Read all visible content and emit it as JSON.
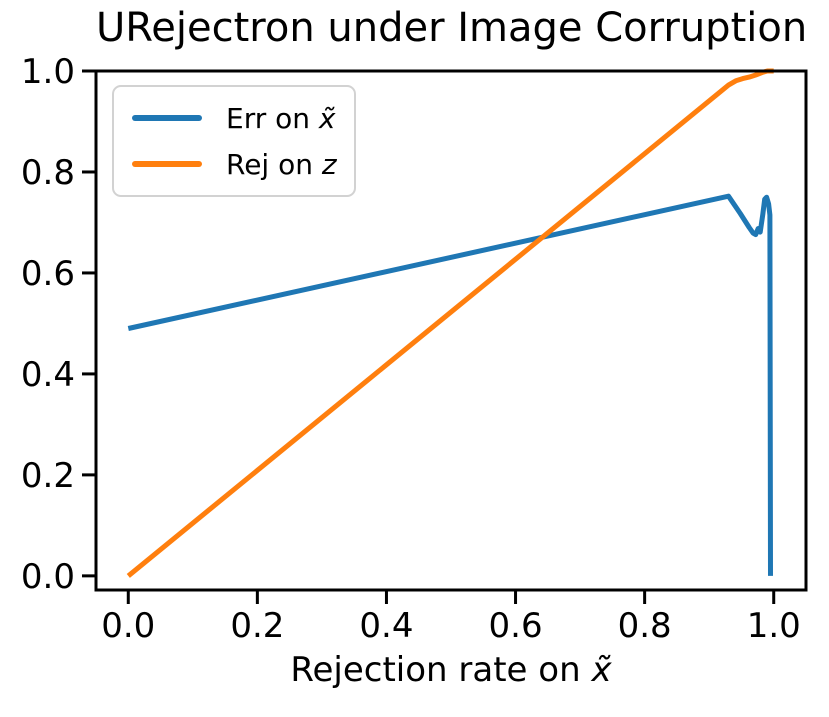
{
  "chart_data": {
    "type": "line",
    "title": "URejectron under Image Corruption",
    "xlabel_text": "Rejection rate on ",
    "xlabel_var": "x̃",
    "ylabel": "",
    "xlim": [
      -0.05,
      1.05
    ],
    "ylim": [
      -0.028,
      1.0
    ],
    "x_ticks": [
      "0.0",
      "0.2",
      "0.4",
      "0.6",
      "0.8",
      "1.0"
    ],
    "y_ticks": [
      "0.0",
      "0.2",
      "0.4",
      "0.6",
      "0.8",
      "1.0"
    ],
    "grid": false,
    "axis_color": "#000000",
    "legend": {
      "position": "upper-left",
      "items": [
        {
          "label_text": "Err on ",
          "label_var": "x̃",
          "color": "#1f77b4"
        },
        {
          "label_text": "Rej on ",
          "label_var": "z",
          "color": "#ff7f0e"
        }
      ]
    },
    "series": [
      {
        "name": "Err on x̃",
        "color": "#1f77b4",
        "points": [
          [
            0.0,
            0.49
          ],
          [
            0.93,
            0.752
          ],
          [
            0.948,
            0.718
          ],
          [
            0.962,
            0.69
          ],
          [
            0.968,
            0.679
          ],
          [
            0.972,
            0.676
          ],
          [
            0.976,
            0.688
          ],
          [
            0.979,
            0.681
          ],
          [
            0.983,
            0.716
          ],
          [
            0.986,
            0.746
          ],
          [
            0.989,
            0.75
          ],
          [
            0.992,
            0.737
          ],
          [
            0.994,
            0.715
          ],
          [
            0.995,
            0.0
          ]
        ]
      },
      {
        "name": "Rej on z",
        "color": "#ff7f0e",
        "points": [
          [
            0.0,
            0.0
          ],
          [
            0.93,
            0.972
          ],
          [
            0.942,
            0.981
          ],
          [
            0.952,
            0.985
          ],
          [
            0.962,
            0.988
          ],
          [
            0.972,
            0.992
          ],
          [
            0.982,
            0.997
          ],
          [
            0.99,
            1.0
          ],
          [
            1.0,
            1.0
          ]
        ]
      }
    ]
  }
}
